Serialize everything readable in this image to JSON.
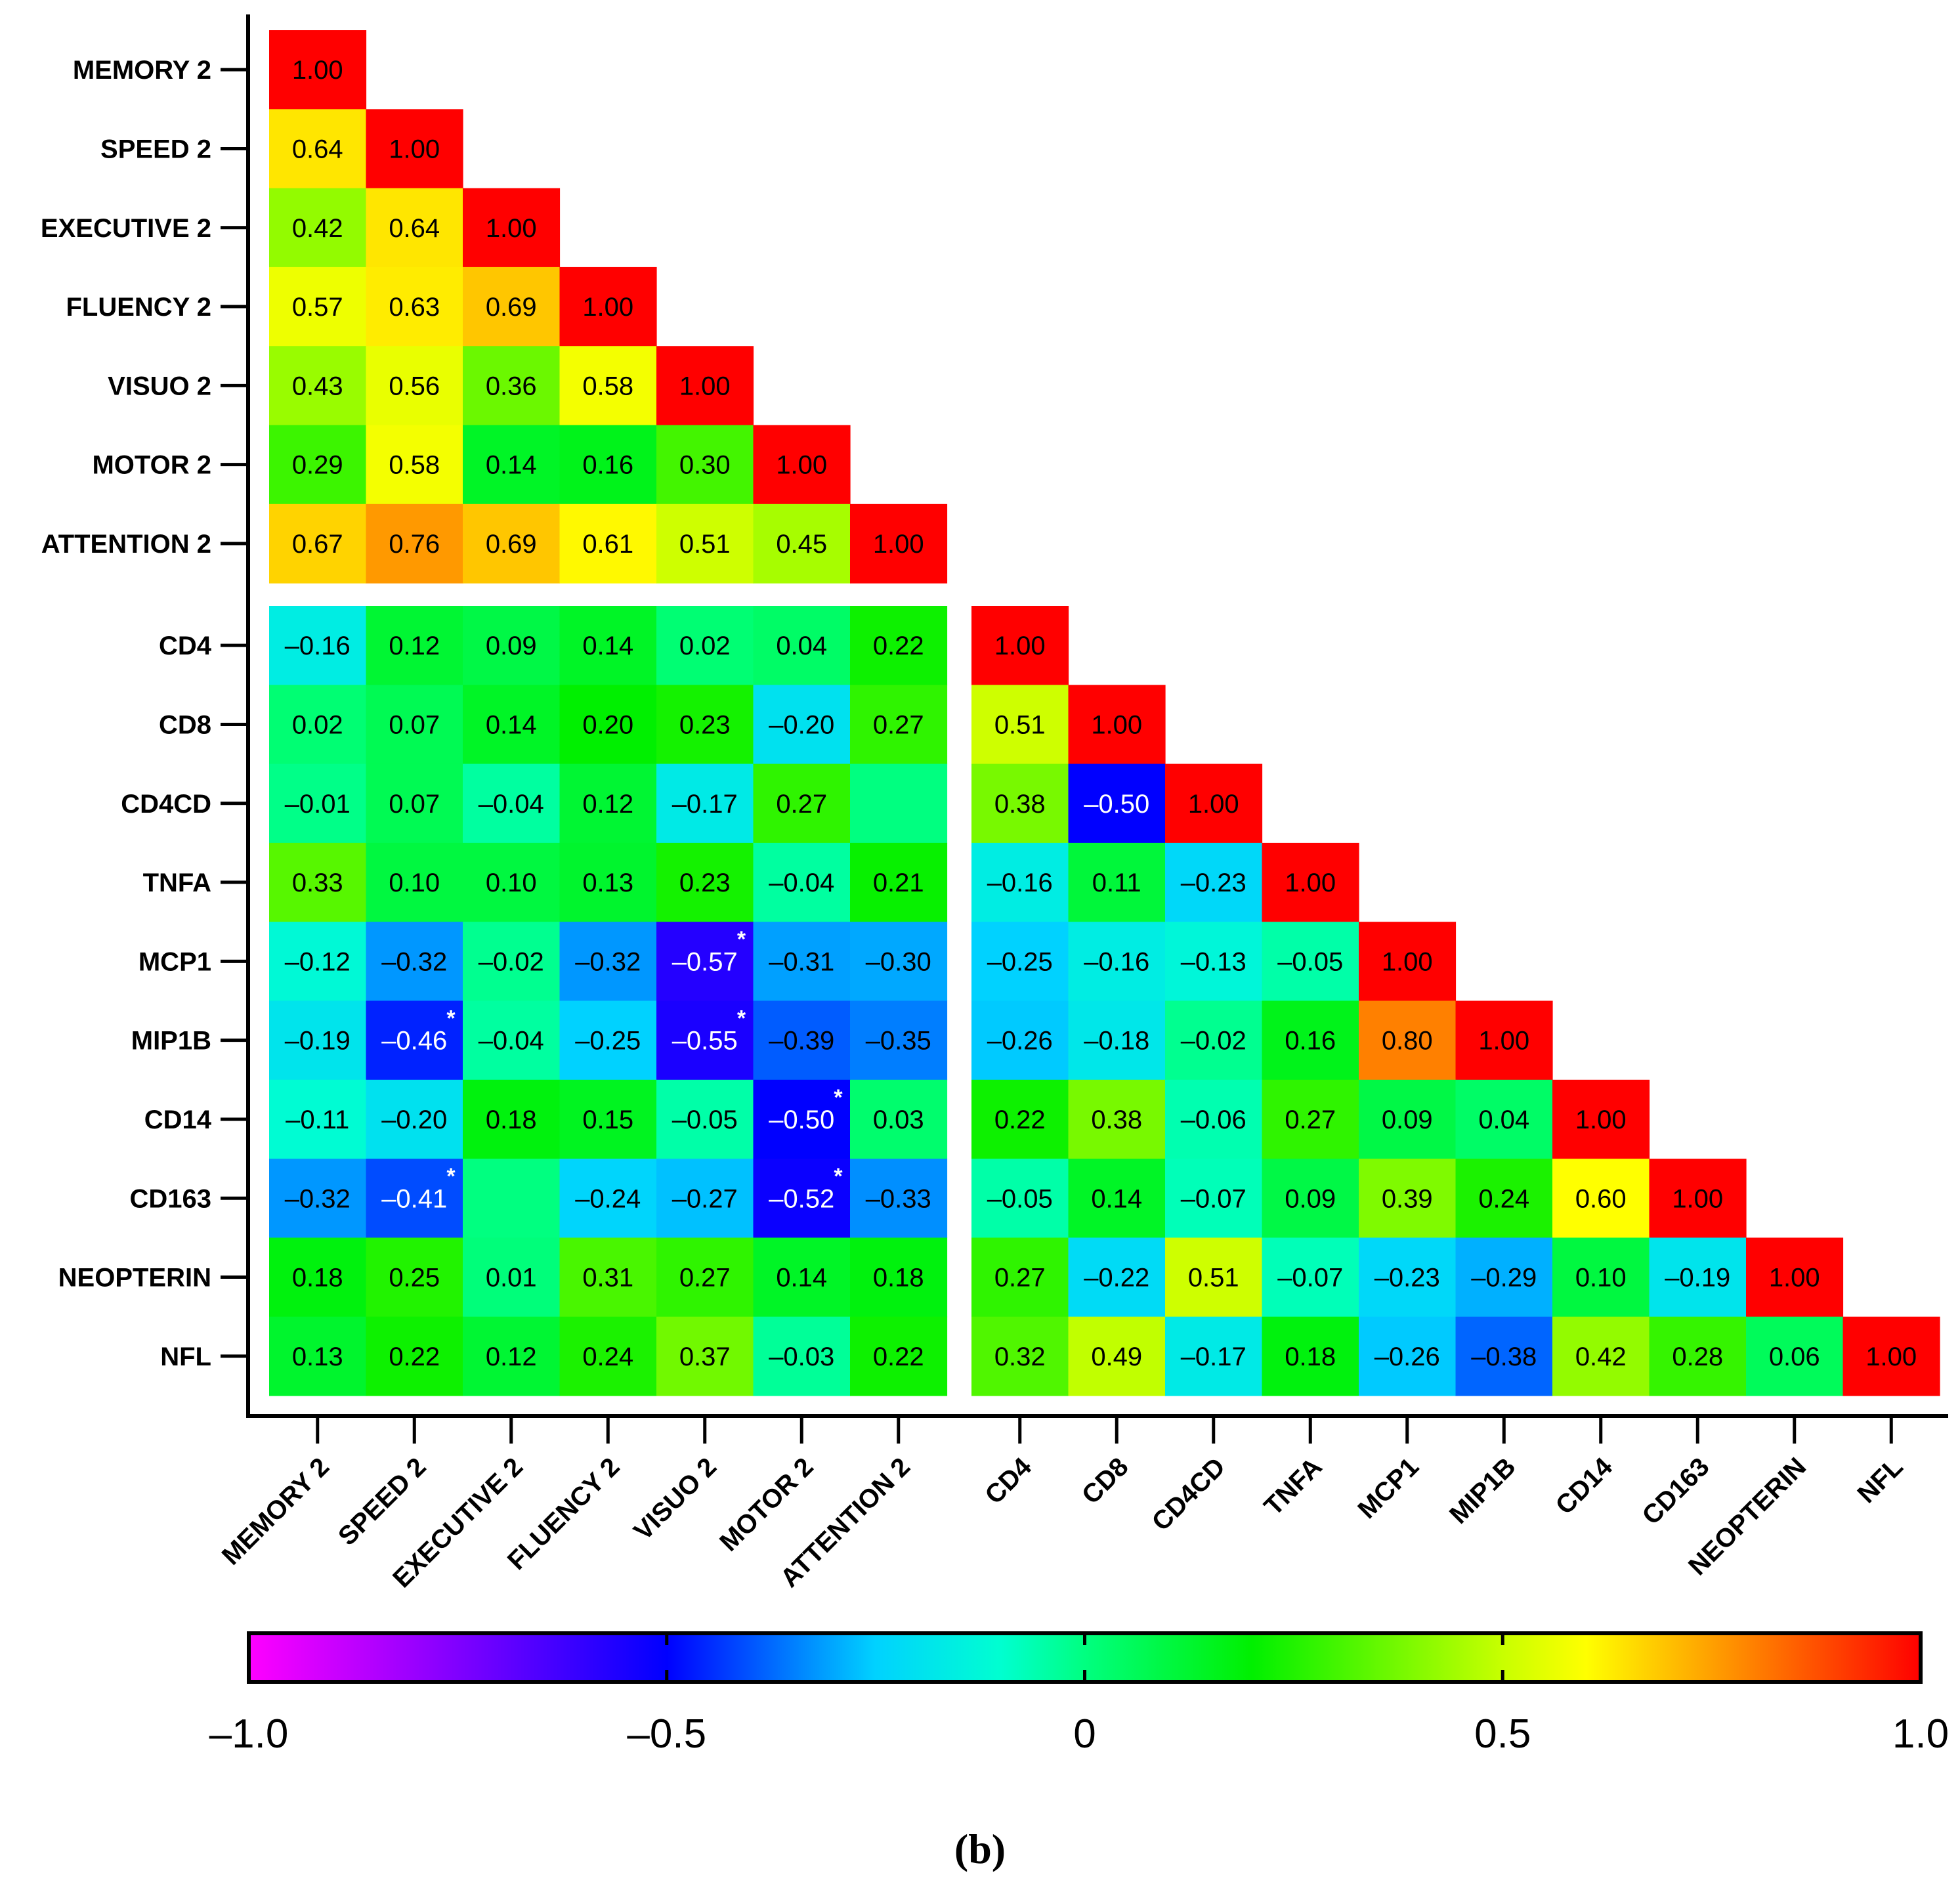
{
  "chart_data": {
    "type": "heatmap",
    "title": "",
    "caption": "(b)",
    "labels": [
      "MEMORY 2",
      "SPEED 2",
      "EXECUTIVE 2",
      "FLUENCY 2",
      "VISUO 2",
      "MOTOR 2",
      "ATTENTION 2",
      "CD4",
      "CD8",
      "CD4CD",
      "TNFA",
      "MCP1",
      "MIP1B",
      "CD14",
      "CD163",
      "NEOPTERIN",
      "NFL"
    ],
    "matrix": [
      [
        "1.00"
      ],
      [
        "0.64",
        "1.00"
      ],
      [
        "0.42",
        "0.64",
        "1.00"
      ],
      [
        "0.57",
        "0.63",
        "0.69",
        "1.00"
      ],
      [
        "0.43",
        "0.56",
        "0.36",
        "0.58",
        "1.00"
      ],
      [
        "0.29",
        "0.58",
        "0.14",
        "0.16",
        "0.30",
        "1.00"
      ],
      [
        "0.67",
        "0.76",
        "0.69",
        "0.61",
        "0.51",
        "0.45",
        "1.00"
      ],
      [
        "–0.16",
        "0.12",
        "0.09",
        "0.14",
        "0.02",
        "0.04",
        "0.22",
        "1.00"
      ],
      [
        "0.02",
        "0.07",
        "0.14",
        "0.20",
        "0.23",
        "–0.20",
        "0.27",
        "0.51",
        "1.00"
      ],
      [
        "–0.01",
        "0.07",
        "–0.04",
        "0.12",
        "–0.17",
        "0.27",
        "",
        "0.38",
        "–0.50",
        "1.00"
      ],
      [
        "0.33",
        "0.10",
        "0.10",
        "0.13",
        "0.23",
        "–0.04",
        "0.21",
        "–0.16",
        "0.11",
        "–0.23",
        "1.00"
      ],
      [
        "–0.12",
        "–0.32",
        "–0.02",
        "–0.32",
        "–0.57",
        "–0.31",
        "–0.30",
        "–0.25",
        "–0.16",
        "–0.13",
        "–0.05",
        "1.00"
      ],
      [
        "–0.19",
        "–0.46",
        "–0.04",
        "–0.25",
        "–0.55",
        "–0.39",
        "–0.35",
        "–0.26",
        "–0.18",
        "–0.02",
        "0.16",
        "0.80",
        "1.00"
      ],
      [
        "–0.11",
        "–0.20",
        "0.18",
        "0.15",
        "–0.05",
        "–0.50",
        "0.03",
        "0.22",
        "0.38",
        "–0.06",
        "0.27",
        "0.09",
        "0.04",
        "1.00"
      ],
      [
        "–0.32",
        "–0.41",
        "",
        "–0.24",
        "–0.27",
        "–0.52",
        "–0.33",
        "–0.05",
        "0.14",
        "–0.07",
        "0.09",
        "0.39",
        "0.24",
        "0.60",
        "1.00"
      ],
      [
        "0.18",
        "0.25",
        "0.01",
        "0.31",
        "0.27",
        "0.14",
        "0.18",
        "0.27",
        "–0.22",
        "0.51",
        "–0.07",
        "–0.23",
        "–0.29",
        "0.10",
        "–0.19",
        "1.00"
      ],
      [
        "0.13",
        "0.22",
        "0.12",
        "0.24",
        "0.37",
        "–0.03",
        "0.22",
        "0.32",
        "0.49",
        "–0.17",
        "0.18",
        "–0.26",
        "–0.38",
        "0.42",
        "0.28",
        "0.06",
        "1.00"
      ]
    ],
    "missing_values": [
      [
        9,
        6,
        0.0
      ],
      [
        14,
        2,
        0.0
      ]
    ],
    "significant": [
      [
        11,
        4
      ],
      [
        12,
        1
      ],
      [
        12,
        4
      ],
      [
        13,
        5
      ],
      [
        14,
        1
      ],
      [
        14,
        5
      ]
    ],
    "significance_marker": "*",
    "colorbar": {
      "range": [
        -1.0,
        1.0
      ],
      "ticks": [
        "–1.0",
        "–0.5",
        "0",
        "0.5",
        "1.0"
      ],
      "tick_values": [
        -1.0,
        -0.5,
        0,
        0.5,
        1.0
      ],
      "stops": [
        {
          "value": -1.0,
          "color": "#ff00ff"
        },
        {
          "value": -0.5,
          "color": "#0000ff"
        },
        {
          "value": -0.25,
          "color": "#00d2ff"
        },
        {
          "value": -0.1,
          "color": "#00ffd0"
        },
        {
          "value": 0.0,
          "color": "#00ff80"
        },
        {
          "value": 0.2,
          "color": "#00f000"
        },
        {
          "value": 0.5,
          "color": "#c8ff00"
        },
        {
          "value": 0.6,
          "color": "#ffff00"
        },
        {
          "value": 0.8,
          "color": "#ff8000"
        },
        {
          "value": 1.0,
          "color": "#ff0000"
        }
      ]
    },
    "legend": "bottom"
  }
}
